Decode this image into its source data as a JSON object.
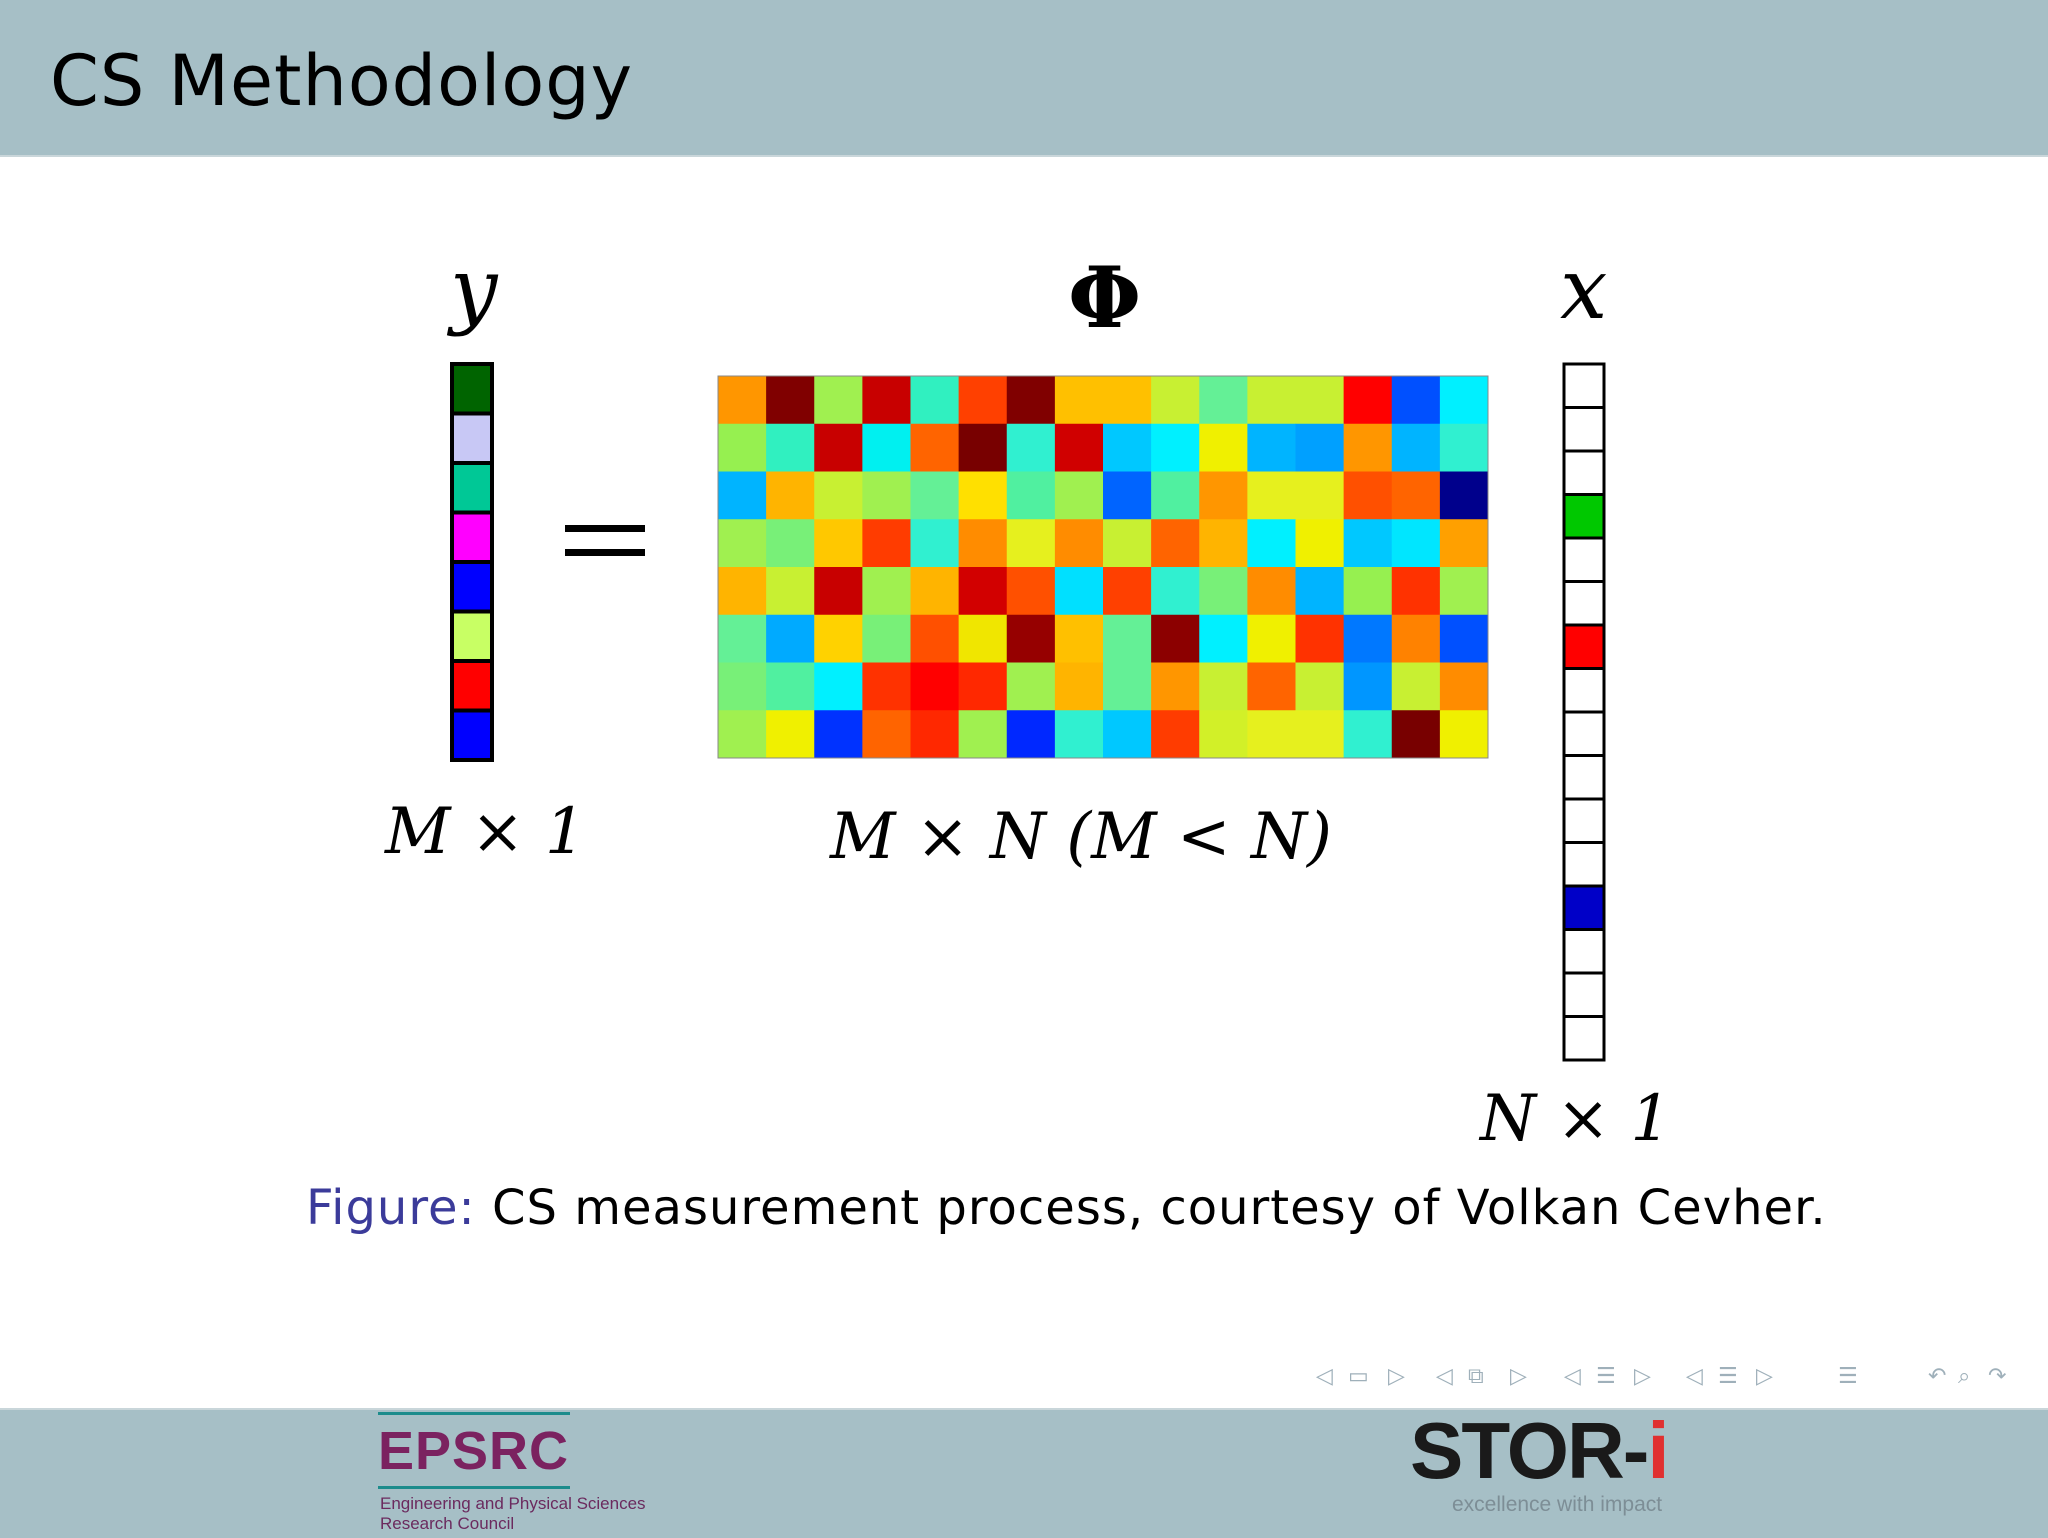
{
  "slide": {
    "title": "CS Methodology"
  },
  "equation": {
    "y_label": "y",
    "phi_label": "Φ",
    "x_label": "x",
    "y_dim": "M × 1",
    "phi_dim": "M × N (M < N)",
    "x_dim": "N × 1"
  },
  "y_vector": [
    "#006400",
    "#c8c8f5",
    "#00c896",
    "#ff00ff",
    "#0000ff",
    "#c8ff64",
    "#ff0000",
    "#0000ff"
  ],
  "x_vector": {
    "length": 16,
    "nonzero": [
      {
        "index": 3,
        "color": "#00c800"
      },
      {
        "index": 6,
        "color": "#ff0000"
      },
      {
        "index": 12,
        "color": "#0000c8"
      }
    ]
  },
  "phi_matrix": [
    [
      "#ff9600",
      "#800000",
      "#a0f050",
      "#c80000",
      "#30f0c0",
      "#ff4000",
      "#800000",
      "#ffc000",
      "#ffc000",
      "#c8f032",
      "#64f096",
      "#c8f032",
      "#c8f032",
      "#ff0000",
      "#0050ff",
      "#00f0ff"
    ],
    [
      "#96f050",
      "#30f0c0",
      "#c80000",
      "#00f0f0",
      "#ff6400",
      "#780000",
      "#30f0d0",
      "#d00000",
      "#00c8ff",
      "#00f0ff",
      "#f0f000",
      "#00b4ff",
      "#00a0ff",
      "#ff9600",
      "#00b4ff",
      "#30f0d0"
    ],
    [
      "#00b4ff",
      "#ffb400",
      "#c8f032",
      "#a0f050",
      "#64f096",
      "#ffe000",
      "#50f0a0",
      "#a0f050",
      "#0064ff",
      "#50f0a0",
      "#ff9600",
      "#e6f01e",
      "#e6f01e",
      "#ff5000",
      "#ff6400",
      "#00008c"
    ],
    [
      "#a0f050",
      "#78f078",
      "#ffc800",
      "#ff3c00",
      "#30f0d0",
      "#ff8c00",
      "#e6f01e",
      "#ff8c00",
      "#c8f032",
      "#ff6400",
      "#ffb400",
      "#00f0ff",
      "#f0f000",
      "#00c8ff",
      "#00e6ff",
      "#ffa000"
    ],
    [
      "#ffb400",
      "#c8f032",
      "#c80000",
      "#a0f050",
      "#ffb400",
      "#d20000",
      "#ff5000",
      "#00e0ff",
      "#ff4000",
      "#30f0d0",
      "#78f078",
      "#ff8c00",
      "#00b4ff",
      "#96f050",
      "#ff3200",
      "#a0f050"
    ],
    [
      "#64f096",
      "#00aaff",
      "#ffd200",
      "#78f078",
      "#ff5000",
      "#f0e600",
      "#960000",
      "#ffc000",
      "#64f096",
      "#8c0000",
      "#00f0ff",
      "#f0f000",
      "#ff3200",
      "#0078ff",
      "#ff8200",
      "#0050ff"
    ],
    [
      "#78f078",
      "#50f0a0",
      "#00f0ff",
      "#ff3200",
      "#ff0000",
      "#ff2800",
      "#a0f050",
      "#ffb400",
      "#64f096",
      "#ff9600",
      "#c8f032",
      "#ff6400",
      "#c8f032",
      "#0096ff",
      "#c8f032",
      "#ff8c00"
    ],
    [
      "#a0f050",
      "#f0f000",
      "#0032ff",
      "#ff6400",
      "#ff2800",
      "#a0f050",
      "#0028ff",
      "#30f0d0",
      "#00c8ff",
      "#ff3c00",
      "#d2f028",
      "#e6f01e",
      "#e6f01e",
      "#30f0d0",
      "#780000",
      "#f0f000"
    ]
  ],
  "caption": {
    "label": "Figure:",
    "text": "CS measurement process, courtesy of Volkan Cevher."
  },
  "nav_icons": [
    "nav-prev-frame-icon",
    "nav-frame-icon",
    "nav-next-frame-icon",
    "nav-subsection-icon",
    "nav-section-icon",
    "nav-toc-icon",
    "nav-search-icon"
  ],
  "footer": {
    "epsrc_logo": "EPSRC",
    "epsrc_line1": "Engineering and Physical Sciences",
    "epsrc_line2": "Research Council",
    "stor_logo_main": "STOR-",
    "stor_logo_accent": "i",
    "stor_tagline": "excellence with impact"
  }
}
